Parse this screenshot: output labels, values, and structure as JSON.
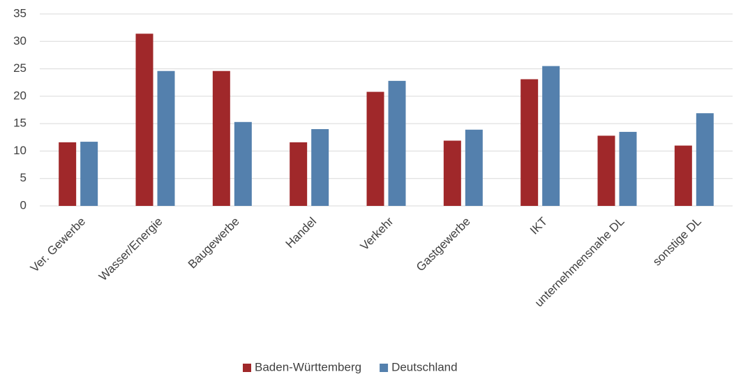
{
  "chart_data": {
    "type": "bar",
    "categories": [
      "Ver. Gewerbe",
      "Wasser/Energie",
      "Baugewerbe",
      "Handel",
      "Verkehr",
      "Gastgewerbe",
      "IKT",
      "unternehmensnahe DL",
      "sonstige DL"
    ],
    "series": [
      {
        "name": "Baden-Württemberg",
        "color": "#a0282a",
        "values": [
          11.6,
          31.4,
          24.6,
          11.6,
          20.8,
          11.9,
          23.1,
          12.8,
          11.0
        ]
      },
      {
        "name": "Deutschland",
        "color": "#5480ad",
        "values": [
          11.7,
          24.6,
          15.3,
          14.0,
          22.8,
          13.9,
          25.5,
          13.5,
          16.9
        ]
      }
    ],
    "ylim": [
      0,
      35
    ],
    "yticks": [
      0,
      5,
      10,
      15,
      20,
      25,
      30,
      35
    ],
    "grid": true,
    "legend": "bottom"
  }
}
